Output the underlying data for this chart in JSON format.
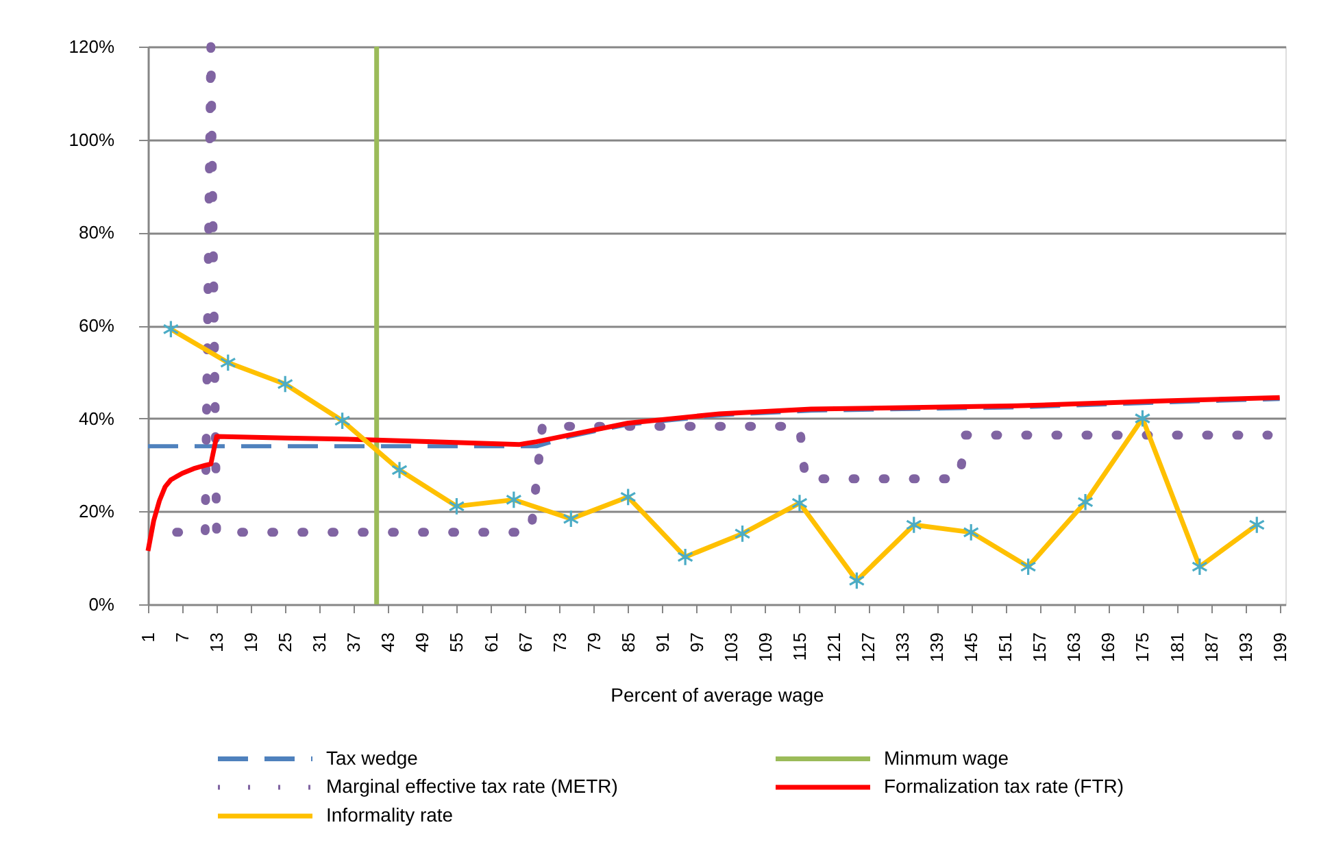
{
  "chart_data": {
    "type": "line",
    "xlabel": "Percent of average wage",
    "xlim": [
      1,
      200
    ],
    "xticks": [
      1,
      7,
      13,
      19,
      25,
      31,
      37,
      43,
      49,
      55,
      61,
      67,
      73,
      79,
      85,
      91,
      97,
      103,
      109,
      115,
      121,
      127,
      133,
      139,
      145,
      151,
      157,
      163,
      169,
      175,
      181,
      187,
      193,
      199
    ],
    "ylim": [
      0,
      120
    ],
    "yticks": [
      {
        "value": 0,
        "label": "0%"
      },
      {
        "value": 20,
        "label": "20%"
      },
      {
        "value": 40,
        "label": "40%"
      },
      {
        "value": 60,
        "label": "60%"
      },
      {
        "value": 80,
        "label": "80%"
      },
      {
        "value": 100,
        "label": "100%"
      },
      {
        "value": 120,
        "label": "120%"
      }
    ],
    "grid": "y",
    "legend": "bottom",
    "series": [
      {
        "name": "Tax wedge",
        "color": "#4f81bd",
        "line_style": "dashed",
        "x": [
          1,
          69,
          75,
          85,
          101,
          117,
          133,
          153,
          177,
          199
        ],
        "values": [
          34,
          34,
          36.2,
          38.7,
          40.7,
          41.7,
          42,
          42.4,
          43.4,
          44.2
        ]
      },
      {
        "name": "Minmum wage",
        "color": "#9bbb59",
        "line_style": "solid",
        "x": [
          41,
          41
        ],
        "values": [
          0,
          120
        ]
      },
      {
        "name": "Marginal effective tax rate (METR)",
        "color": "#8064a2",
        "line_style": "dotted",
        "x": [
          6,
          11,
          12,
          13,
          68,
          70,
          115,
          116,
          143,
          144,
          197
        ],
        "values": [
          15.5,
          15.5,
          120,
          15.5,
          15.5,
          38.3,
          38.3,
          27,
          27,
          36.4,
          36.4
        ]
      },
      {
        "name": "Formalization tax rate (FTR)",
        "color": "#ff0000",
        "line_style": "solid",
        "x": [
          1,
          2,
          3,
          4,
          5,
          7,
          9,
          11,
          12,
          13,
          25,
          37,
          50,
          66,
          69,
          75,
          85,
          101,
          117,
          133,
          153,
          177,
          199
        ],
        "values": [
          11.5,
          18,
          22.3,
          25.3,
          26.8,
          28.2,
          29.2,
          29.9,
          30.2,
          36.1,
          35.8,
          35.5,
          35,
          34.4,
          35,
          36.5,
          39,
          41,
          42,
          42.3,
          42.7,
          43.7,
          44.5
        ]
      },
      {
        "name": "Informality rate",
        "color": "#ffc000",
        "line_style": "solid",
        "marker": "cross",
        "colors": [
          "#4bacc6",
          "#4bacc6",
          "#4bacc6",
          "#4bacc6",
          "#4bacc6",
          "#4bacc6",
          "#4bacc6",
          "#4bacc6",
          "#4bacc6",
          "#4bacc6",
          "#4bacc6",
          "#4bacc6",
          "#4bacc6",
          "#4bacc6",
          "#4bacc6",
          "#4bacc6",
          "#4bacc6",
          "#4bacc6",
          "#4bacc6",
          "#4bacc6"
        ],
        "x": [
          5,
          15,
          25,
          35,
          45,
          55,
          65,
          75,
          85,
          95,
          105,
          115,
          125,
          135,
          145,
          155,
          165,
          175,
          185,
          195
        ],
        "values": [
          59.2,
          52,
          47.4,
          39.5,
          28.9,
          21.1,
          22.5,
          18.4,
          23.1,
          10.2,
          15.2,
          21.8,
          5.1,
          17.1,
          15.5,
          8.1,
          22,
          40,
          8.1,
          17.1
        ]
      }
    ]
  }
}
